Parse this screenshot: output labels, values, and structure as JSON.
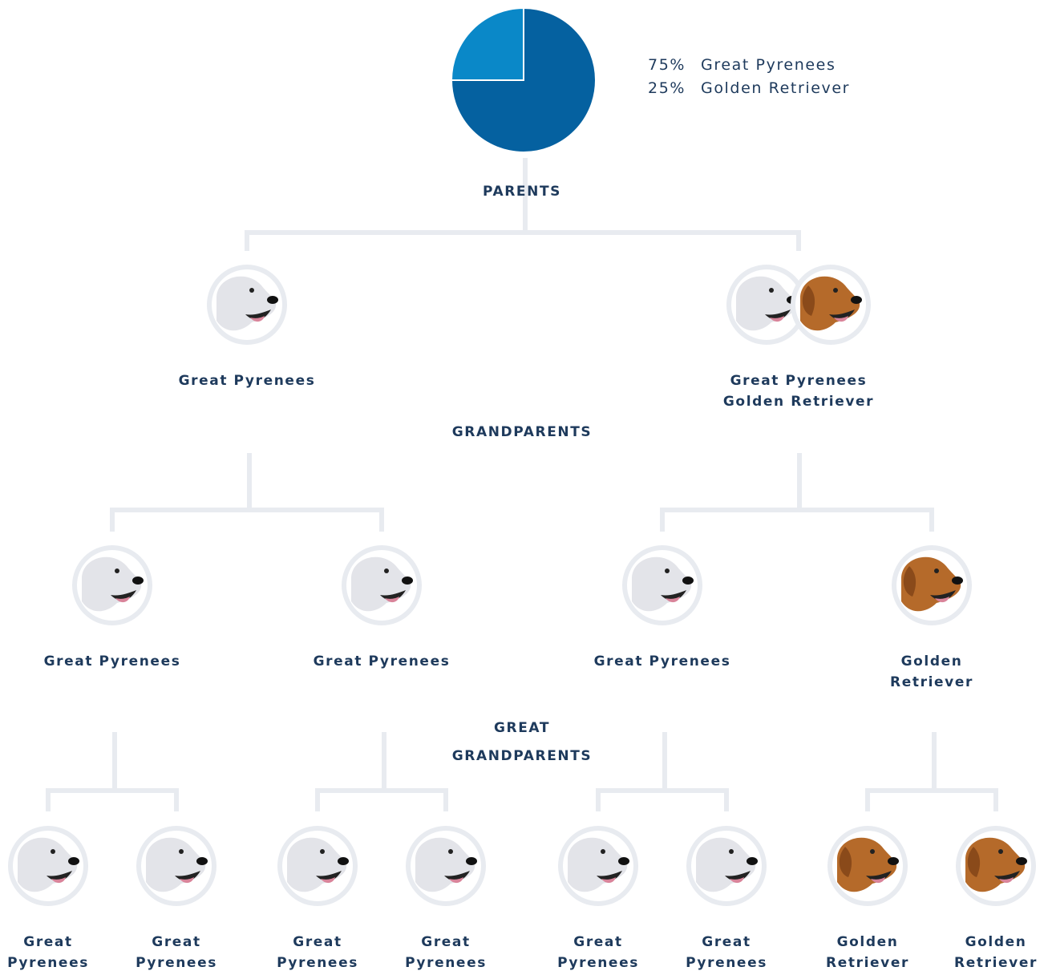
{
  "breakdown": {
    "type": "pie",
    "categories": [
      "Great Pyrenees",
      "Golden Retriever"
    ],
    "values": [
      75,
      25
    ],
    "value_labels": [
      "75%",
      "25%"
    ],
    "colors": [
      "#0561a0",
      "#0a88c8"
    ]
  },
  "generations": [
    {
      "title": "PARENTS",
      "nodes": [
        {
          "breeds": [
            "Great Pyrenees"
          ]
        },
        {
          "breeds": [
            "Great Pyrenees",
            "Golden Retriever"
          ]
        }
      ]
    },
    {
      "title": "GRANDPARENTS",
      "nodes": [
        {
          "breeds": [
            "Great Pyrenees"
          ]
        },
        {
          "breeds": [
            "Great Pyrenees"
          ]
        },
        {
          "breeds": [
            "Great Pyrenees"
          ]
        },
        {
          "breeds": [
            "Golden Retriever"
          ]
        }
      ]
    },
    {
      "title": "GREAT GRANDPARENTS",
      "nodes": [
        {
          "breeds": [
            "Great Pyrenees"
          ]
        },
        {
          "breeds": [
            "Great Pyrenees"
          ]
        },
        {
          "breeds": [
            "Great Pyrenees"
          ]
        },
        {
          "breeds": [
            "Great Pyrenees"
          ]
        },
        {
          "breeds": [
            "Great Pyrenees"
          ]
        },
        {
          "breeds": [
            "Great Pyrenees"
          ]
        },
        {
          "breeds": [
            "Golden Retriever"
          ]
        },
        {
          "breeds": [
            "Golden Retriever"
          ]
        }
      ]
    }
  ]
}
